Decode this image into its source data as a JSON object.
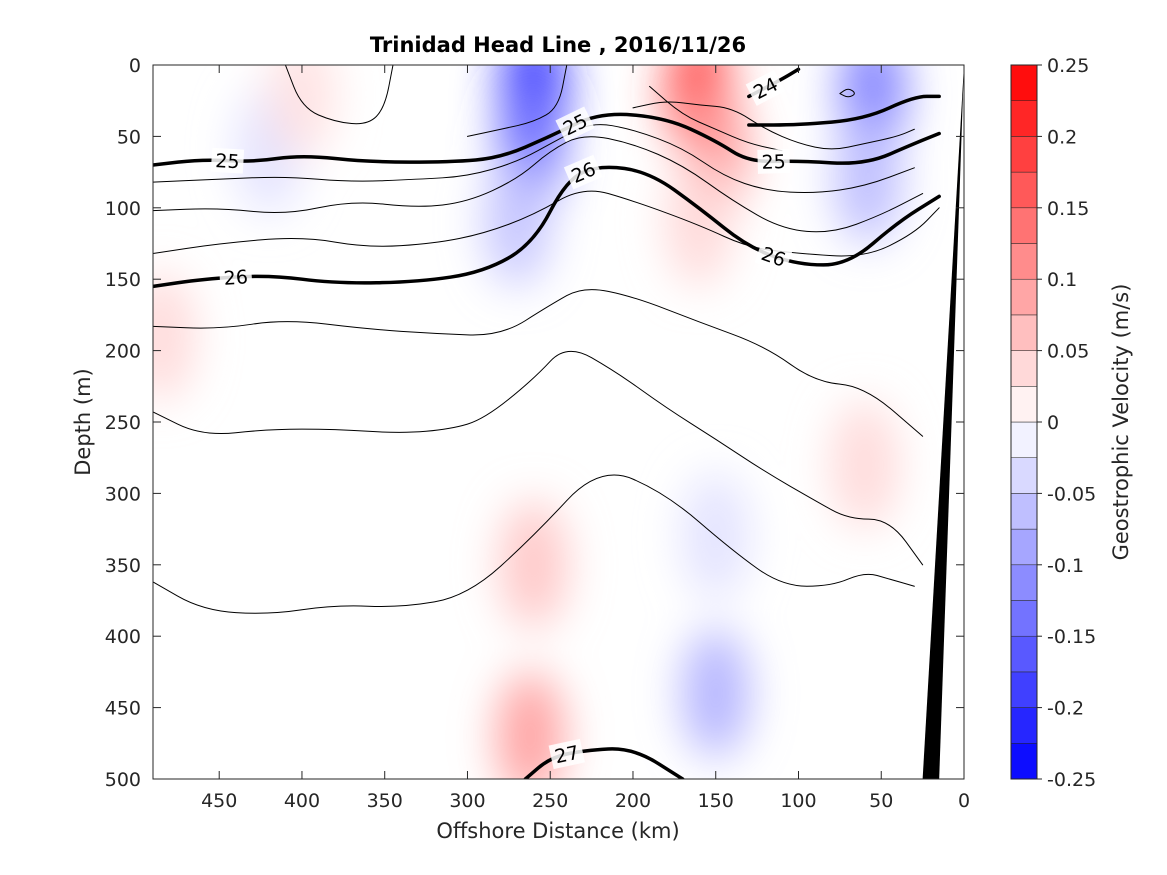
{
  "chart_data": {
    "type": "heatmap",
    "title": "Trinidad Head Line , 2016/11/26",
    "xlabel": "Offshore Distance (km)",
    "ylabel": "Depth (m)",
    "xlim": [
      490,
      0
    ],
    "ylim": [
      500,
      0
    ],
    "x_direction": "reversed",
    "y_direction": "reversed (depth increases downward)",
    "x_ticks": [
      "450",
      "400",
      "350",
      "300",
      "250",
      "200",
      "150",
      "100",
      "50",
      "0"
    ],
    "y_ticks": [
      "0",
      "50",
      "100",
      "150",
      "200",
      "250",
      "300",
      "350",
      "400",
      "450",
      "500"
    ],
    "colorbar": {
      "label": "Geostrophic Velocity (m/s)",
      "range": [
        -0.25,
        0.25
      ],
      "ticks": [
        "0.25",
        "0.2",
        "0.15",
        "0.1",
        "0.05",
        "0",
        "-0.05",
        "-0.1",
        "-0.15",
        "-0.2",
        "-0.25"
      ],
      "levels": 20,
      "positive_color": "#ff0000",
      "negative_color": "#0000ff"
    },
    "velocity_cells": [
      {
        "x": 260,
        "y": 20,
        "v": -0.22
      },
      {
        "x": 262,
        "y": 60,
        "v": -0.14
      },
      {
        "x": 270,
        "y": 110,
        "v": -0.06
      },
      {
        "x": 160,
        "y": 20,
        "v": 0.19
      },
      {
        "x": 150,
        "y": 60,
        "v": 0.1
      },
      {
        "x": 160,
        "y": 110,
        "v": 0.04
      },
      {
        "x": 55,
        "y": 20,
        "v": -0.13
      },
      {
        "x": 58,
        "y": 80,
        "v": -0.07
      },
      {
        "x": 420,
        "y": 60,
        "v": -0.03
      },
      {
        "x": 260,
        "y": 350,
        "v": 0.06
      },
      {
        "x": 262,
        "y": 470,
        "v": 0.1
      },
      {
        "x": 150,
        "y": 330,
        "v": -0.03
      },
      {
        "x": 150,
        "y": 440,
        "v": -0.08
      },
      {
        "x": 60,
        "y": 280,
        "v": 0.04
      },
      {
        "x": 400,
        "y": 20,
        "v": 0.03
      },
      {
        "x": 485,
        "y": 190,
        "v": 0.04
      }
    ],
    "isopycnals": [
      {
        "level": "24",
        "bold": true,
        "labeled": true,
        "x": [
          130,
          110,
          100
        ],
        "y": [
          22,
          10,
          3
        ]
      },
      {
        "level": "25",
        "bold": true,
        "labeled": true,
        "x": [
          490,
          460,
          430,
          400,
          360,
          310,
          280,
          250,
          220,
          180,
          150,
          130,
          100,
          60,
          30,
          15
        ],
        "y": [
          70,
          66,
          68,
          63,
          68,
          68,
          65,
          50,
          33,
          37,
          53,
          68,
          67,
          70,
          55,
          48
        ]
      },
      {
        "level": "25",
        "bold": true,
        "labeled": false,
        "x": [
          130,
          100,
          60,
          30,
          15
        ],
        "y": [
          42,
          42,
          38,
          22,
          22
        ]
      },
      {
        "level": "26",
        "bold": true,
        "labeled": true,
        "x": [
          490,
          460,
          420,
          380,
          330,
          290,
          260,
          240,
          220,
          190,
          160,
          130,
          100,
          70,
          40,
          15
        ],
        "y": [
          155,
          150,
          147,
          153,
          152,
          145,
          125,
          80,
          70,
          75,
          100,
          128,
          140,
          140,
          110,
          92
        ]
      },
      {
        "level": "27",
        "bold": true,
        "labeled": true,
        "x": [
          265,
          250,
          230,
          200,
          170
        ],
        "y": [
          500,
          485,
          480,
          478,
          500
        ]
      },
      {
        "level": "",
        "bold": false,
        "labeled": false,
        "x": [
          490,
          450,
          410,
          360,
          320,
          280,
          250,
          230,
          200,
          160,
          120,
          90,
          60,
          25
        ],
        "y": [
          183,
          185,
          178,
          185,
          188,
          190,
          168,
          155,
          162,
          180,
          197,
          222,
          225,
          260
        ]
      },
      {
        "level": "",
        "bold": false,
        "labeled": false,
        "x": [
          490,
          460,
          420,
          380,
          340,
          310,
          290,
          260,
          240,
          210,
          180,
          150,
          120,
          90,
          70,
          45,
          25
        ],
        "y": [
          243,
          260,
          255,
          255,
          258,
          255,
          248,
          220,
          195,
          215,
          240,
          262,
          285,
          305,
          318,
          318,
          350
        ]
      },
      {
        "level": "",
        "bold": false,
        "labeled": false,
        "x": [
          490,
          460,
          420,
          380,
          340,
          300,
          260,
          220,
          180,
          140,
          110,
          80,
          60,
          45,
          30
        ],
        "y": [
          362,
          382,
          385,
          378,
          380,
          372,
          330,
          280,
          300,
          340,
          365,
          365,
          355,
          360,
          365
        ]
      },
      {
        "level": "",
        "bold": false,
        "labeled": false,
        "x": [
          490,
          450,
          400,
          360,
          320,
          290,
          260,
          230,
          200,
          160,
          130,
          100,
          60,
          30,
          15
        ],
        "y": [
          132,
          125,
          120,
          128,
          125,
          118,
          105,
          85,
          95,
          112,
          128,
          132,
          135,
          118,
          100
        ]
      },
      {
        "level": "",
        "bold": false,
        "labeled": false,
        "x": [
          490,
          450,
          410,
          370,
          330,
          300,
          270,
          250,
          230,
          200,
          170,
          140,
          110,
          80,
          50,
          25
        ],
        "y": [
          102,
          100,
          105,
          95,
          100,
          96,
          80,
          60,
          48,
          55,
          70,
          95,
          115,
          118,
          105,
          90
        ]
      },
      {
        "level": "",
        "bold": false,
        "labeled": false,
        "x": [
          490,
          450,
          410,
          370,
          330,
          300,
          270,
          245,
          225,
          200,
          170,
          145,
          120,
          90,
          60,
          30
        ],
        "y": [
          82,
          80,
          78,
          82,
          80,
          78,
          68,
          52,
          40,
          45,
          58,
          78,
          88,
          90,
          85,
          72
        ]
      },
      {
        "level": "",
        "bold": false,
        "labeled": false,
        "x": [
          410,
          400,
          380,
          360,
          350,
          345
        ],
        "y": [
          0,
          30,
          40,
          42,
          30,
          0
        ]
      },
      {
        "level": "",
        "bold": false,
        "labeled": false,
        "x": [
          300,
          280,
          260,
          245,
          240
        ],
        "y": [
          50,
          45,
          40,
          30,
          0
        ]
      },
      {
        "level": "",
        "bold": false,
        "labeled": false,
        "x": [
          200,
          180,
          160,
          140,
          120,
          100,
          80,
          60,
          40,
          30
        ],
        "y": [
          30,
          25,
          28,
          30,
          45,
          55,
          60,
          55,
          50,
          45
        ]
      },
      {
        "level": "",
        "bold": false,
        "labeled": false,
        "x": [
          190,
          170,
          150,
          130,
          110
        ],
        "y": [
          15,
          35,
          45,
          55,
          60
        ]
      },
      {
        "level": "",
        "bold": false,
        "labeled": false,
        "x": [
          75,
          70,
          65,
          70,
          75
        ],
        "y": [
          20,
          16,
          20,
          23,
          20
        ]
      }
    ],
    "bathymetry": {
      "color": "#000000",
      "x": [
        0,
        25,
        15,
        0
      ],
      "y": [
        0,
        500,
        500,
        0
      ]
    }
  }
}
